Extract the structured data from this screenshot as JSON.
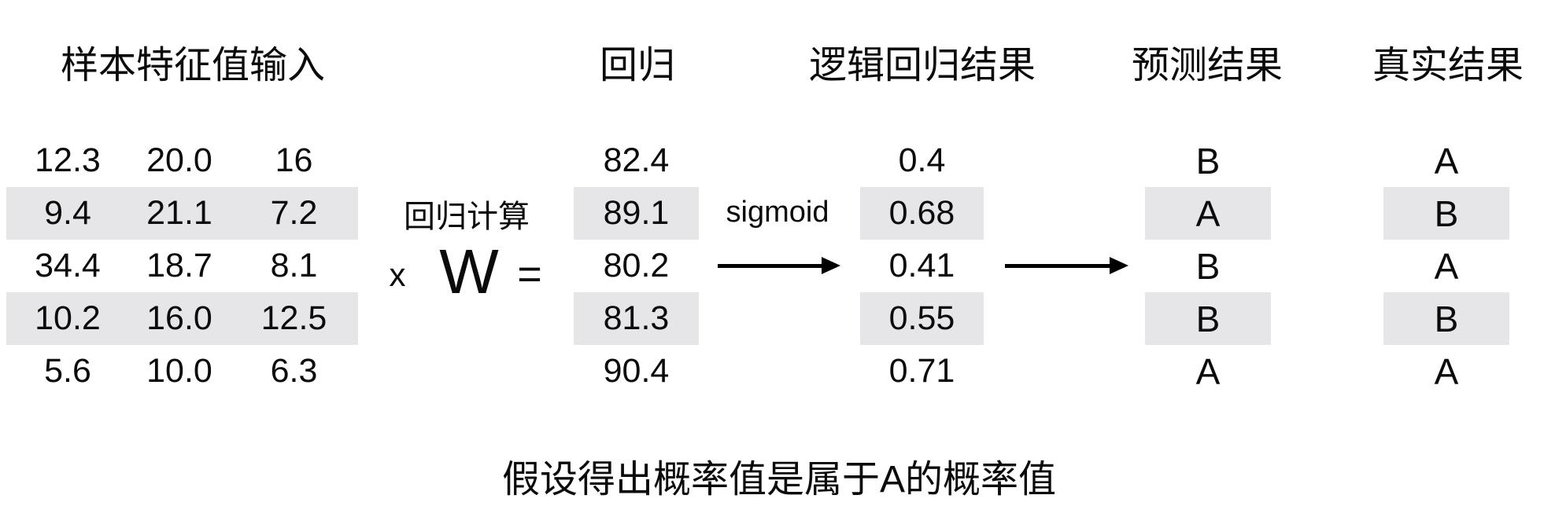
{
  "headers": {
    "input": "样本特征值输入",
    "regression": "回归",
    "logistic": "逻辑回归结果",
    "prediction": "预测结果",
    "truth": "真实结果"
  },
  "operators": {
    "regression_calc_label": "回归计算",
    "multiply": "x",
    "weight_matrix": "W",
    "equals": "=",
    "sigmoid_label": "sigmoid"
  },
  "caption": "假设得出概率值是属于A的概率值",
  "table": {
    "input_rows": [
      [
        "12.3",
        "20.0",
        "16"
      ],
      [
        "9.4",
        "21.1",
        "7.2"
      ],
      [
        "34.4",
        "18.7",
        "8.1"
      ],
      [
        "10.2",
        "16.0",
        "12.5"
      ],
      [
        "5.6",
        "10.0",
        "6.3"
      ]
    ],
    "regression": [
      "82.4",
      "89.1",
      "80.2",
      "81.3",
      "90.4"
    ],
    "logistic": [
      "0.4",
      "0.68",
      "0.41",
      "0.55",
      "0.71"
    ],
    "prediction": [
      "B",
      "A",
      "B",
      "B",
      "A"
    ],
    "truth": [
      "A",
      "B",
      "A",
      "B",
      "A"
    ],
    "highlighted_row_indices": [
      1,
      3
    ]
  },
  "icons": {
    "arrow_right": "→"
  },
  "colors": {
    "background": "#ffffff",
    "text": "#0b0b0b",
    "row_highlight": "#e6e6e8",
    "arrow": "#000000"
  }
}
